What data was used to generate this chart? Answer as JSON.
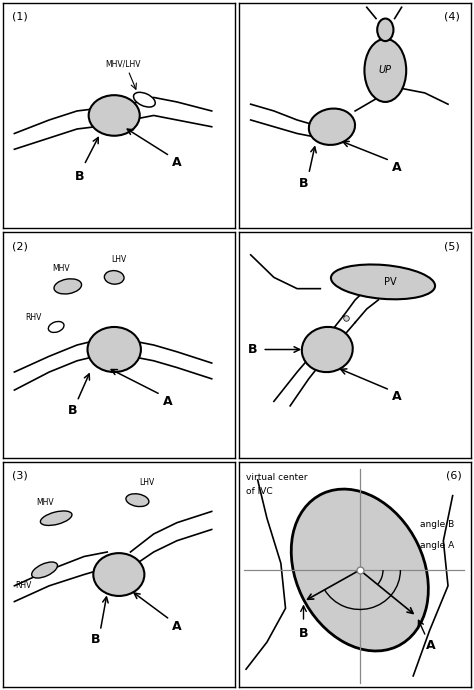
{
  "bg_color": "#ffffff",
  "border_color": "#000000",
  "light_gray": "#cccccc",
  "panel_labels": [
    "(1)",
    "(2)",
    "(3)",
    "(4)",
    "(5)",
    "(6)"
  ]
}
